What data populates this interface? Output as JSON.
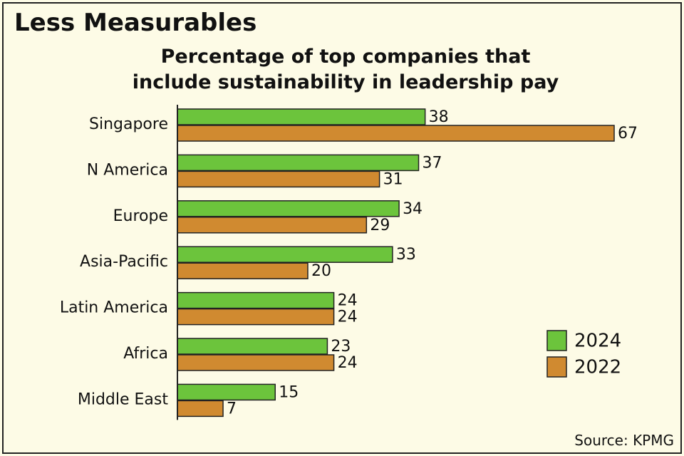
{
  "chart_data": {
    "type": "hbar",
    "title": "Less Measurables",
    "subtitle": "Percentage of top companies that include sustainability in leadership pay",
    "categories": [
      "Singapore",
      "N America",
      "Europe",
      "Asia-Pacific",
      "Latin America",
      "Africa",
      "Middle East"
    ],
    "series": [
      {
        "name": "2024",
        "color": "#6cc43c",
        "values": [
          38,
          37,
          34,
          33,
          24,
          23,
          15
        ]
      },
      {
        "name": "2022",
        "color": "#d08a30",
        "values": [
          67,
          31,
          29,
          20,
          24,
          24,
          7
        ]
      }
    ],
    "legend": "lower-right",
    "source": "Source: KPMG"
  }
}
